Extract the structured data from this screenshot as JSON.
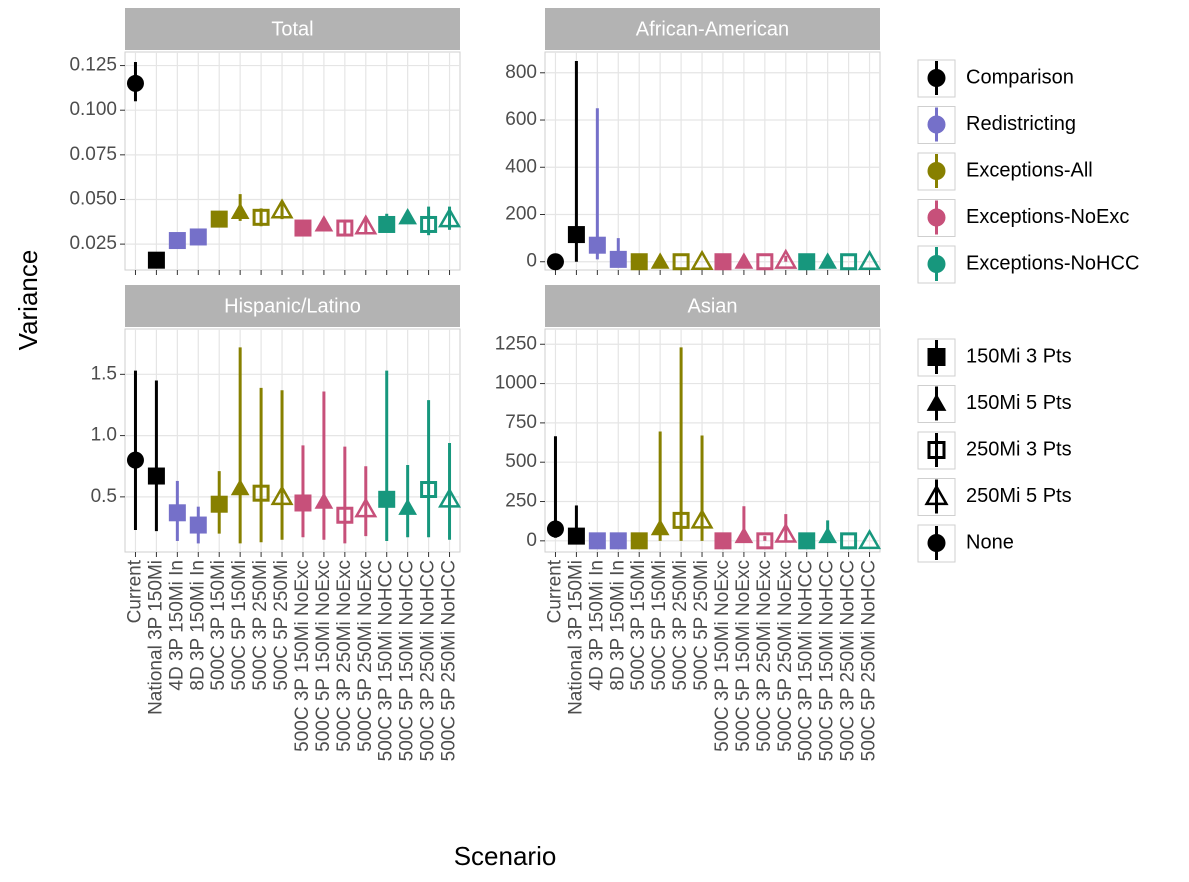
{
  "chart_data": {
    "type": "pointrange",
    "x_label": "Scenario",
    "y_label": "Variance",
    "categories": [
      "Current",
      "National 3P 150Mi",
      "4D 3P 150Mi In",
      "8D 3P 150Mi In",
      "500C 3P 150Mi",
      "500C 5P 150Mi",
      "500C 3P 250Mi",
      "500C 5P 250Mi",
      "500C 3P 150Mi NoExc",
      "500C 5P 150Mi NoExc",
      "500C 3P 250Mi NoExc",
      "500C 5P 250Mi NoExc",
      "500C 3P 150Mi NoHCC",
      "500C 5P 150Mi NoHCC",
      "500C 3P 250Mi NoHCC",
      "500C 5P 250Mi NoHCC"
    ],
    "groups": [
      {
        "name": "Comparison",
        "color": "#000000"
      },
      {
        "name": "Redistricting",
        "color": "#7570c9"
      },
      {
        "name": "Exceptions-All",
        "color": "#878000"
      },
      {
        "name": "Exceptions-NoExc",
        "color": "#c7507a"
      },
      {
        "name": "Exceptions-NoHCC",
        "color": "#17977d"
      }
    ],
    "shapes": [
      {
        "name": "150Mi 3 Pts",
        "shape": "square"
      },
      {
        "name": "150Mi 5 Pts",
        "shape": "triangle"
      },
      {
        "name": "250Mi 3 Pts",
        "shape": "open-square"
      },
      {
        "name": "250Mi 5 Pts",
        "shape": "open-triangle"
      },
      {
        "name": "None",
        "shape": "circle"
      }
    ],
    "point_group": [
      "Comparison",
      "Comparison",
      "Redistricting",
      "Redistricting",
      "Exceptions-All",
      "Exceptions-All",
      "Exceptions-All",
      "Exceptions-All",
      "Exceptions-NoExc",
      "Exceptions-NoExc",
      "Exceptions-NoExc",
      "Exceptions-NoExc",
      "Exceptions-NoHCC",
      "Exceptions-NoHCC",
      "Exceptions-NoHCC",
      "Exceptions-NoHCC"
    ],
    "point_shape": [
      "None",
      "150Mi 3 Pts",
      "150Mi 3 Pts",
      "150Mi 3 Pts",
      "150Mi 3 Pts",
      "150Mi 5 Pts",
      "250Mi 3 Pts",
      "250Mi 5 Pts",
      "150Mi 3 Pts",
      "150Mi 5 Pts",
      "250Mi 3 Pts",
      "250Mi 5 Pts",
      "150Mi 3 Pts",
      "150Mi 5 Pts",
      "250Mi 3 Pts",
      "250Mi 5 Pts"
    ],
    "grid": true,
    "panels": [
      {
        "title": "Total",
        "ylim": [
          0.0105,
          0.1326
        ],
        "yticks": [
          0.025,
          {
            "value": 0.05,
            "label": "0.050"
          },
          0.075,
          {
            "value": 0.1,
            "label": "0.100"
          },
          0.125
        ],
        "values": [
          0.115,
          0.016,
          0.027,
          0.029,
          0.039,
          0.043,
          0.04,
          0.044,
          0.034,
          0.036,
          0.034,
          0.035,
          0.036,
          0.04,
          0.036,
          0.039
        ],
        "lower": [
          0.105,
          null,
          null,
          null,
          0.036,
          0.038,
          0.035,
          0.039,
          0.032,
          0.033,
          0.03,
          0.031,
          0.033,
          0.037,
          0.03,
          0.033
        ],
        "upper": [
          0.127,
          null,
          null,
          null,
          0.043,
          0.053,
          0.045,
          0.048,
          0.036,
          0.038,
          0.038,
          0.04,
          0.042,
          0.043,
          0.046,
          0.046
        ]
      },
      {
        "title": "African-American",
        "ylim": [
          -35,
          888
        ],
        "yticks": [
          0,
          200,
          400,
          600,
          800
        ],
        "values": [
          0,
          115,
          70,
          10,
          0,
          0,
          0,
          0,
          0,
          0,
          0,
          5,
          0,
          0,
          0,
          0
        ],
        "lower": [
          null,
          0,
          10,
          0,
          null,
          null,
          null,
          null,
          null,
          null,
          null,
          0,
          null,
          null,
          null,
          null
        ],
        "upper": [
          null,
          850,
          650,
          100,
          null,
          null,
          null,
          null,
          null,
          null,
          null,
          25,
          null,
          null,
          null,
          null
        ]
      },
      {
        "title": "Hispanic/Latino",
        "ylim": [
          0.05,
          1.87
        ],
        "yticks": [
          0.5,
          {
            "value": 1,
            "label": "1.0"
          },
          1.5
        ],
        "values": [
          0.8,
          0.67,
          0.37,
          0.27,
          0.44,
          0.57,
          0.53,
          0.5,
          0.45,
          0.46,
          0.35,
          0.4,
          0.48,
          0.41,
          0.56,
          0.48
        ],
        "lower": [
          0.23,
          0.22,
          0.14,
          0.12,
          0.2,
          0.12,
          0.13,
          0.15,
          0.17,
          0.15,
          0.12,
          0.18,
          0.14,
          0.17,
          0.17,
          0.15
        ],
        "upper": [
          1.53,
          1.45,
          0.63,
          0.42,
          0.71,
          1.72,
          1.39,
          1.37,
          0.92,
          1.36,
          0.91,
          0.75,
          1.53,
          0.76,
          1.29,
          0.94
        ]
      },
      {
        "title": "Asian",
        "ylim": [
          -71,
          1347
        ],
        "yticks": [
          0,
          250,
          500,
          750,
          1000,
          1250
        ],
        "values": [
          75,
          30,
          0,
          0,
          0,
          80,
          130,
          130,
          0,
          30,
          0,
          40,
          0,
          30,
          0,
          0
        ],
        "lower": [
          20,
          0,
          null,
          null,
          null,
          0,
          0,
          0,
          null,
          0,
          0,
          0,
          null,
          0,
          null,
          null
        ],
        "upper": [
          665,
          225,
          null,
          null,
          null,
          695,
          1230,
          670,
          null,
          220,
          30,
          170,
          null,
          130,
          null,
          null
        ]
      }
    ]
  }
}
